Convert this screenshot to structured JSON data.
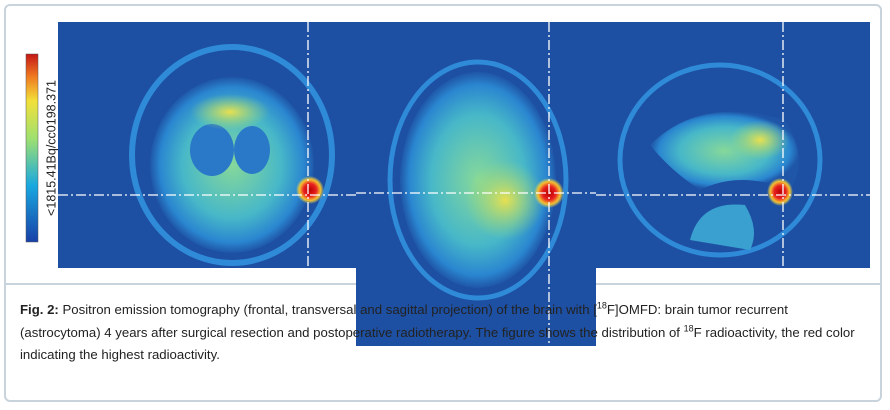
{
  "figure": {
    "colorbar_label": "<1815.41Bq/cc0198.371",
    "caption": {
      "label": "Fig. 2:",
      "parts": [
        " Positron emission tomography (frontal, transversal and sagittal projection) of the brain with [",
        "18",
        "F]OMFD: brain tumor recurrent (astrocytoma) 4 years after surgical resection and postoperative radiotherapy. The figure shows the distribution of ",
        "18",
        "F radioactivity, the red color indicating the highest radioactivity."
      ]
    }
  }
}
